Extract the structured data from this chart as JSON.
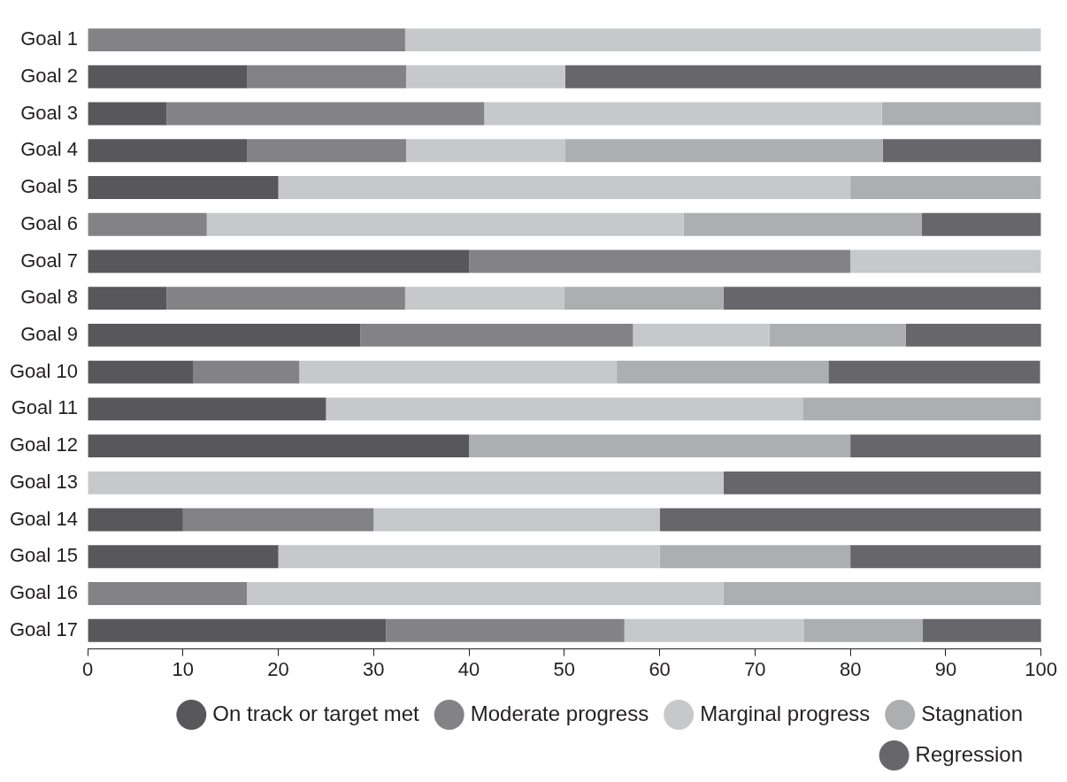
{
  "chart_data": {
    "type": "bar",
    "orientation": "horizontal",
    "stacked": true,
    "categories": [
      "Goal 1",
      "Goal 2",
      "Goal 3",
      "Goal 4",
      "Goal 5",
      "Goal 6",
      "Goal 7",
      "Goal 8",
      "Goal 9",
      "Goal 10",
      "Goal 11",
      "Goal 12",
      "Goal 13",
      "Goal 14",
      "Goal 15",
      "Goal 16",
      "Goal 17"
    ],
    "series": [
      {
        "name": "On track or target met",
        "color": "#58585a",
        "values": [
          0,
          16.7,
          8.3,
          16.7,
          20,
          0,
          40,
          8.3,
          28.6,
          11.1,
          25,
          40,
          0,
          10,
          20,
          0,
          31.3
        ]
      },
      {
        "name": "Moderate progress",
        "color": "#838386",
        "values": [
          33.3,
          16.7,
          33.3,
          16.7,
          0,
          12.5,
          40,
          25,
          28.6,
          11.1,
          0,
          0,
          0,
          20,
          0,
          16.7,
          25
        ]
      },
      {
        "name": "Marginal progress",
        "color": "#c7c8ca",
        "values": [
          66.7,
          16.7,
          41.7,
          16.7,
          60,
          50,
          20,
          16.7,
          14.3,
          33.3,
          50,
          0,
          66.7,
          30,
          40,
          50,
          18.8
        ]
      },
      {
        "name": "Stagnation",
        "color": "#adaeb0",
        "values": [
          0,
          0,
          16.7,
          33.3,
          20,
          25,
          0,
          16.7,
          14.3,
          22.2,
          25,
          40,
          0,
          0,
          20,
          33.3,
          12.5
        ]
      },
      {
        "name": "Regression",
        "color": "#67676b",
        "values": [
          0,
          50,
          0,
          16.7,
          0,
          12.5,
          0,
          33.3,
          14.3,
          22.2,
          0,
          20,
          33.3,
          40,
          20,
          0,
          12.5
        ]
      }
    ],
    "xlim": [
      0,
      100
    ],
    "xticks": [
      0,
      10,
      20,
      30,
      40,
      50,
      60,
      70,
      80,
      90,
      100
    ],
    "grid": false,
    "legend": "bottom right"
  }
}
